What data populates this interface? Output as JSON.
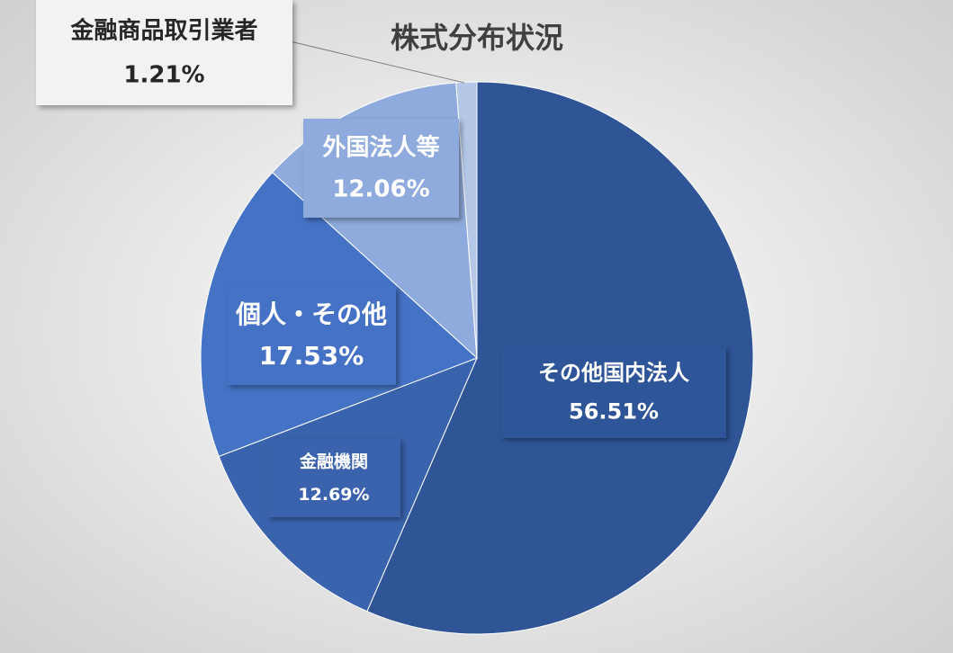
{
  "chart_data": {
    "type": "pie",
    "title": "株式分布状況",
    "categories": [
      "その他国内法人",
      "金融機関",
      "個人・その他",
      "外国法人等",
      "金融商品取引業者"
    ],
    "values": [
      56.51,
      12.69,
      17.53,
      12.06,
      1.21
    ],
    "value_labels": [
      "56.51%",
      "12.69%",
      "17.53%",
      "12.06%",
      "1.21%"
    ],
    "colors": [
      "#2f5597",
      "#3a63ad",
      "#4472c4",
      "#8faadc",
      "#b4c7e7"
    ]
  }
}
